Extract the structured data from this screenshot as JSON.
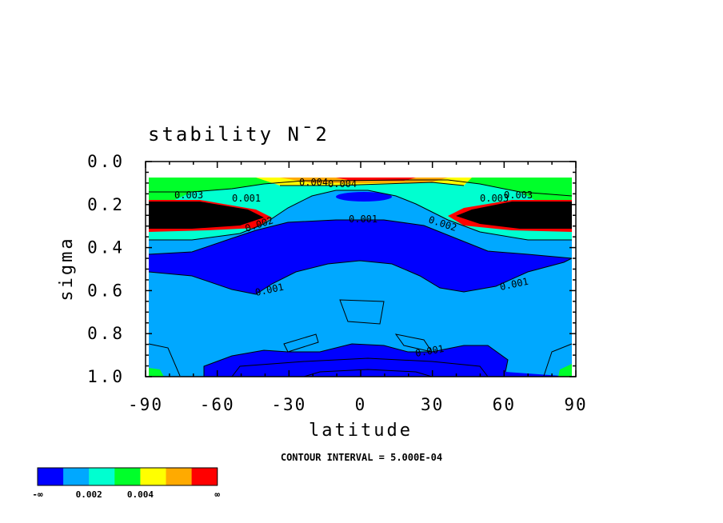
{
  "chart_data": {
    "type": "heatmap",
    "title": "stability N¯2",
    "xlabel": "latitude",
    "ylabel": "sigma",
    "xlim": [
      -90,
      90
    ],
    "ylim": [
      1.0,
      0.0
    ],
    "x_ticks": [
      "-90",
      "-60",
      "-30",
      "0",
      "30",
      "60",
      "90"
    ],
    "y_ticks": [
      "0.0",
      "0.2",
      "0.4",
      "0.6",
      "0.8",
      "1.0"
    ],
    "contour_interval_text": "CONTOUR INTERVAL = 5.000E-04",
    "contour_labels": [
      "0.003",
      "0.001",
      "0.002",
      "0.004",
      "0.001",
      "0.002",
      "0.003",
      "0.001",
      "0.001",
      "0.001",
      "0.004",
      "0.003"
    ],
    "colorbar": {
      "colors": [
        "#0000ff",
        "#00a8ff",
        "#00ffd0",
        "#00ff2a",
        "#ffff00",
        "#ffaa00",
        "#ff0000"
      ],
      "labels": [
        "-∞",
        "0.002",
        "0.004",
        "∞"
      ]
    },
    "grid": false
  }
}
